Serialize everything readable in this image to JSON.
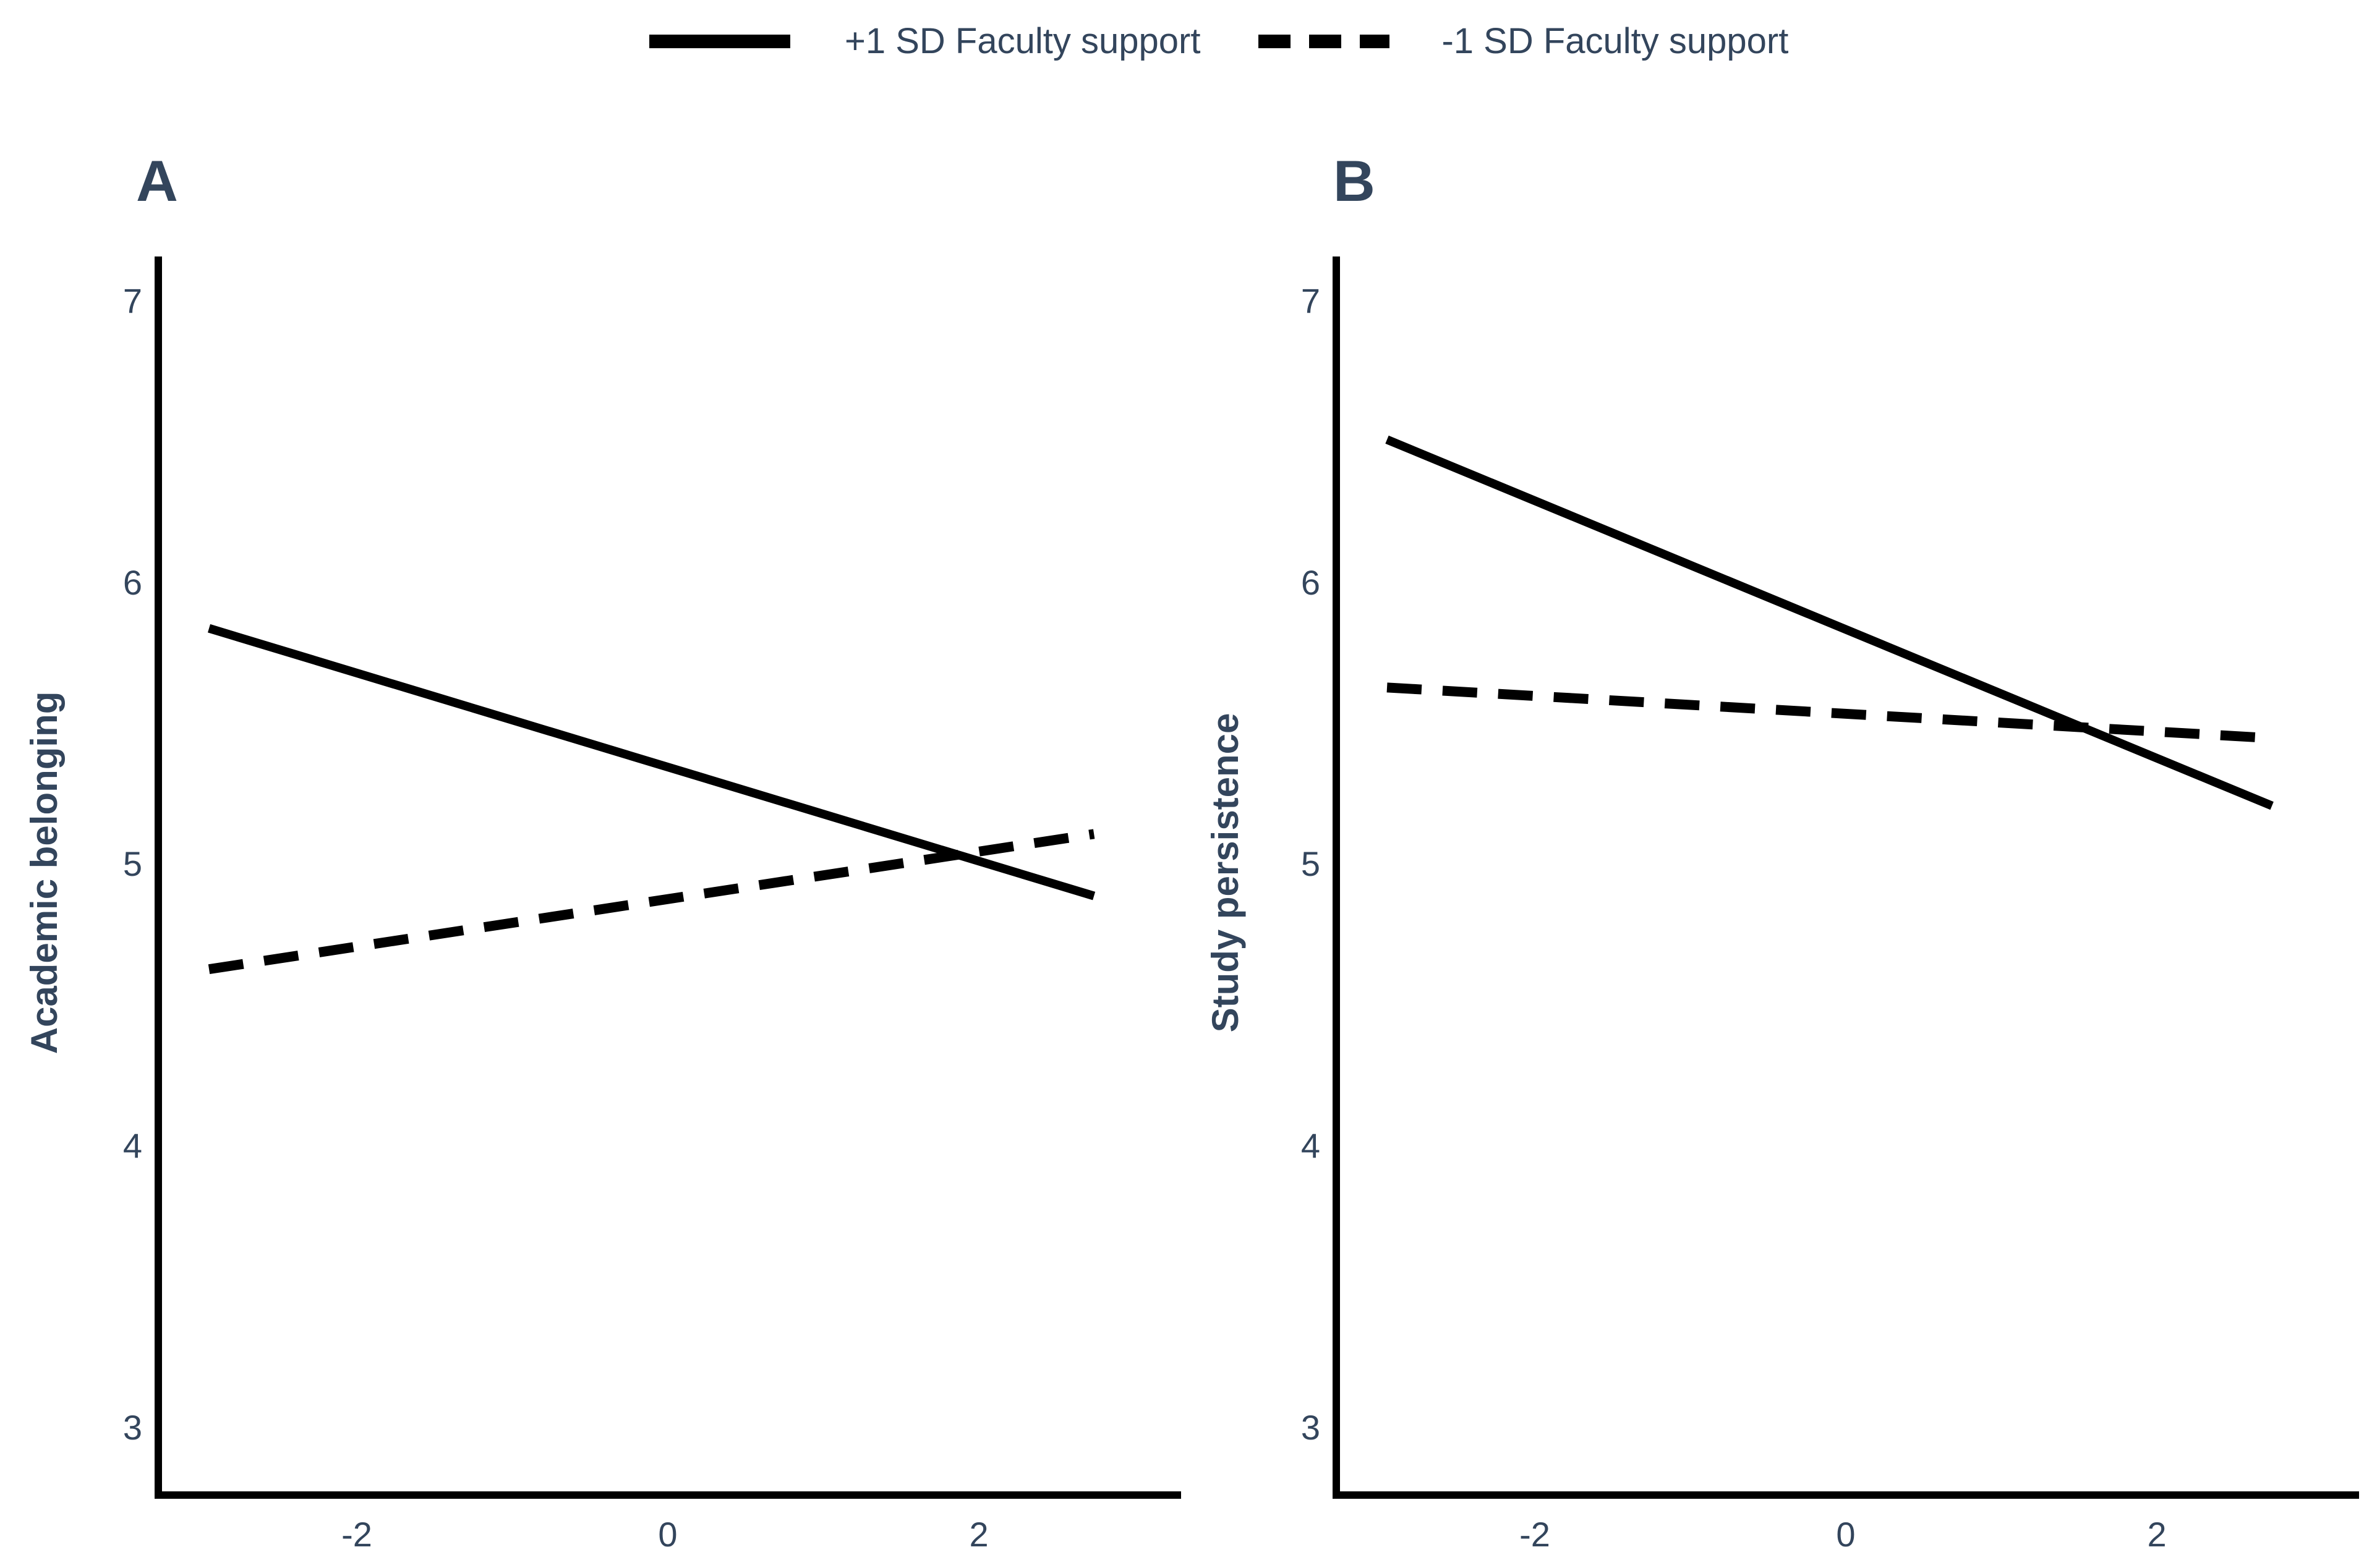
{
  "legend": {
    "items": [
      {
        "label": "+1 SD Faculty support",
        "style": "solid"
      },
      {
        "label": "-1 SD Faculty support",
        "style": "dashed"
      }
    ]
  },
  "colors": {
    "line": "#000000",
    "text": "#33455c",
    "background": "#ffffff"
  },
  "chart_data": [
    {
      "type": "line",
      "panel_label": "A",
      "title": "",
      "xlabel": "",
      "ylabel": "Academic belonging",
      "xlim": [
        -3.3,
        3.3
      ],
      "ylim": [
        2.75,
        7.16
      ],
      "x_ticks": [
        -2,
        0,
        2
      ],
      "y_ticks": [
        7,
        6,
        5,
        4,
        3
      ],
      "grid": false,
      "legend_position": "top",
      "series": [
        {
          "name": "+1 SD Faculty support",
          "dash": false,
          "x": [
            -2.95,
            2.74
          ],
          "y": [
            5.84,
            4.89
          ]
        },
        {
          "name": "-1 SD Faculty support",
          "dash": true,
          "x": [
            -2.95,
            2.74
          ],
          "y": [
            4.63,
            5.11
          ]
        }
      ]
    },
    {
      "type": "line",
      "panel_label": "B",
      "title": "",
      "xlabel": "",
      "ylabel": "Study persistence",
      "xlim": [
        -3.3,
        3.3
      ],
      "ylim": [
        2.75,
        7.16
      ],
      "x_ticks": [
        -2,
        0,
        2
      ],
      "y_ticks": [
        7,
        6,
        5,
        4,
        3
      ],
      "grid": false,
      "legend_position": "top",
      "series": [
        {
          "name": "+1 SD Faculty support",
          "dash": false,
          "x": [
            -2.95,
            2.74
          ],
          "y": [
            6.51,
            5.21
          ]
        },
        {
          "name": "-1 SD Faculty support",
          "dash": true,
          "x": [
            -2.95,
            2.74
          ],
          "y": [
            5.63,
            5.45
          ]
        }
      ]
    }
  ]
}
